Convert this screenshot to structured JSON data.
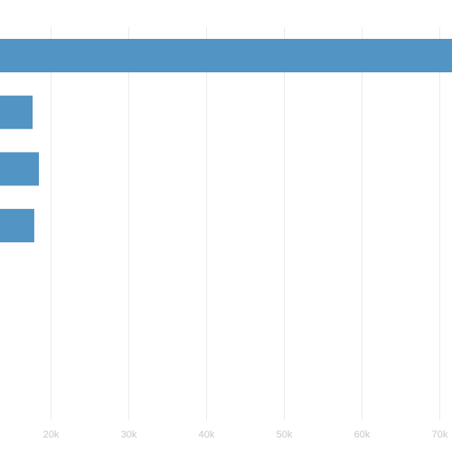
{
  "chart_data": {
    "type": "bar",
    "orientation": "horizontal",
    "title": "",
    "xlabel": "",
    "ylabel": "",
    "values": [
      72000,
      17700,
      18500,
      17900
    ],
    "xlim_visible": [
      13500,
      71600
    ],
    "x_ticks": [
      20000,
      30000,
      40000,
      50000,
      60000,
      70000
    ],
    "x_tick_labels": [
      "20k",
      "30k",
      "40k",
      "50k",
      "60k",
      "70k"
    ],
    "grid": "vertical",
    "legend": "none",
    "bar_color": "#5294c3",
    "grid_color": "#ebebeb",
    "tick_label_color": "#c8c8c8"
  }
}
